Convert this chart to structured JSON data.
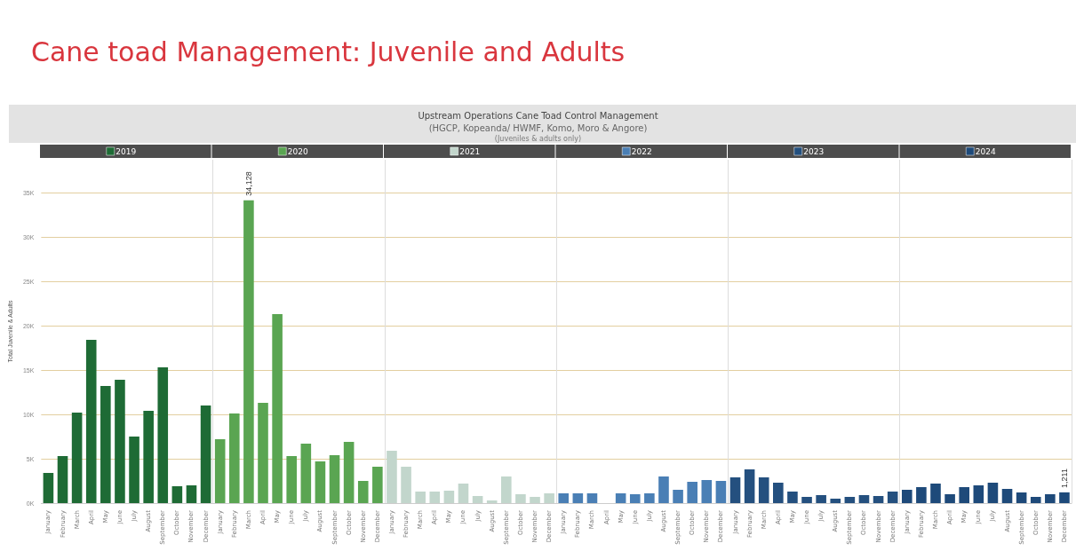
{
  "chart_data": {
    "type": "bar",
    "title": "Cane toad Management: Juvenile and Adults",
    "subtitle": "Upstream Operations Cane Toad Control Management",
    "annotations": [
      "(HGCP, Kopeanda/ HWMF, Komo, Moro & Angore)",
      "(Juveniles & adults only)"
    ],
    "ylabel": "Total Juvenile & Adults",
    "categories": [
      "January",
      "February",
      "March",
      "April",
      "May",
      "June",
      "July",
      "August",
      "September",
      "October",
      "November",
      "December",
      "January",
      "February",
      "March",
      "April",
      "May",
      "June",
      "July",
      "August",
      "September",
      "October",
      "November",
      "December",
      "January",
      "February",
      "March",
      "April",
      "May",
      "June",
      "July",
      "August",
      "September",
      "October",
      "November",
      "December",
      "January",
      "February",
      "March",
      "April",
      "May",
      "June",
      "July",
      "August",
      "September",
      "October",
      "November",
      "December",
      "January",
      "February",
      "March",
      "April",
      "May",
      "June",
      "July",
      "August",
      "September",
      "October",
      "November",
      "December",
      "January",
      "February",
      "March",
      "April",
      "May",
      "June",
      "July",
      "August",
      "September",
      "October",
      "November",
      "December"
    ],
    "series": [
      {
        "name": "2019",
        "color": "#1e6b35",
        "values": [
          3400,
          5300,
          10200,
          18400,
          13200,
          13900,
          7500,
          10400,
          15300,
          1900,
          2000,
          11000,
          null,
          null,
          null,
          null,
          null,
          null,
          null,
          null,
          null,
          null,
          null,
          null,
          null,
          null,
          null,
          null,
          null,
          null,
          null,
          null,
          null,
          null,
          null,
          null,
          null,
          null,
          null,
          null,
          null,
          null,
          null,
          null,
          null,
          null,
          null,
          null,
          null,
          null,
          null,
          null,
          null,
          null,
          null,
          null,
          null,
          null,
          null,
          null,
          null,
          null,
          null,
          null,
          null,
          null,
          null,
          null,
          null,
          null,
          null,
          null
        ]
      },
      {
        "name": "2020",
        "color": "#5aa552",
        "values": [
          null,
          null,
          null,
          null,
          null,
          null,
          null,
          null,
          null,
          null,
          null,
          null,
          7200,
          10100,
          34128,
          11300,
          21300,
          5300,
          6700,
          4700,
          5400,
          6900,
          2500,
          4100,
          null,
          null,
          null,
          null,
          null,
          null,
          null,
          null,
          null,
          null,
          null,
          null,
          null,
          null,
          null,
          null,
          null,
          null,
          null,
          null,
          null,
          null,
          null,
          null,
          null,
          null,
          null,
          null,
          null,
          null,
          null,
          null,
          null,
          null,
          null,
          null,
          null,
          null,
          null,
          null,
          null,
          null,
          null,
          null,
          null,
          null,
          null,
          null
        ],
        "value_labels": [
          null,
          null,
          null,
          null,
          null,
          null,
          null,
          null,
          null,
          null,
          null,
          null,
          null,
          null,
          "34,128",
          null,
          null,
          null,
          null,
          null,
          null,
          null,
          null,
          null,
          null,
          null,
          null,
          null,
          null,
          null,
          null,
          null,
          null,
          null,
          null,
          null,
          null,
          null,
          null,
          null,
          null,
          null,
          null,
          null,
          null,
          null,
          null,
          null,
          null,
          null,
          null,
          null,
          null,
          null,
          null,
          null,
          null,
          null,
          null,
          null,
          null,
          null,
          null,
          null,
          null,
          null,
          null,
          null,
          null,
          null,
          null,
          null
        ]
      },
      {
        "name": "2021",
        "color": "#c2d6cc",
        "values": [
          null,
          null,
          null,
          null,
          null,
          null,
          null,
          null,
          null,
          null,
          null,
          null,
          null,
          null,
          null,
          null,
          null,
          null,
          null,
          null,
          null,
          null,
          null,
          null,
          5900,
          4100,
          1300,
          1300,
          1400,
          2200,
          800,
          300,
          3000,
          1000,
          700,
          1100,
          null,
          null,
          null,
          null,
          null,
          null,
          null,
          null,
          null,
          null,
          null,
          null,
          null,
          null,
          null,
          null,
          null,
          null,
          null,
          null,
          null,
          null,
          null,
          null,
          null,
          null,
          null,
          null,
          null,
          null,
          null,
          null,
          null,
          null,
          null,
          null
        ]
      },
      {
        "name": "2022",
        "color": "#4a7fb5",
        "values": [
          null,
          null,
          null,
          null,
          null,
          null,
          null,
          null,
          null,
          null,
          null,
          null,
          null,
          null,
          null,
          null,
          null,
          null,
          null,
          null,
          null,
          null,
          null,
          null,
          null,
          null,
          null,
          null,
          null,
          null,
          null,
          null,
          null,
          null,
          null,
          null,
          1100,
          1100,
          1100,
          0,
          1100,
          1000,
          1100,
          3000,
          1500,
          2400,
          2600,
          2500,
          null,
          null,
          null,
          null,
          null,
          null,
          null,
          null,
          null,
          null,
          null,
          null,
          null,
          null,
          null,
          null,
          null,
          null,
          null,
          null,
          null,
          null,
          null,
          null
        ]
      },
      {
        "name": "2023",
        "color": "#24507f",
        "values": [
          null,
          null,
          null,
          null,
          null,
          null,
          null,
          null,
          null,
          null,
          null,
          null,
          null,
          null,
          null,
          null,
          null,
          null,
          null,
          null,
          null,
          null,
          null,
          null,
          null,
          null,
          null,
          null,
          null,
          null,
          null,
          null,
          null,
          null,
          null,
          null,
          null,
          null,
          null,
          null,
          null,
          null,
          null,
          null,
          null,
          null,
          null,
          null,
          2900,
          3800,
          2900,
          2300,
          1300,
          700,
          900,
          500,
          700,
          900,
          800,
          1300,
          null,
          null,
          null,
          null,
          null,
          null,
          null,
          null,
          null,
          null,
          null,
          null
        ]
      },
      {
        "name": "2024",
        "color": "#1e4a7a",
        "values": [
          null,
          null,
          null,
          null,
          null,
          null,
          null,
          null,
          null,
          null,
          null,
          null,
          null,
          null,
          null,
          null,
          null,
          null,
          null,
          null,
          null,
          null,
          null,
          null,
          null,
          null,
          null,
          null,
          null,
          null,
          null,
          null,
          null,
          null,
          null,
          null,
          null,
          null,
          null,
          null,
          null,
          null,
          null,
          null,
          null,
          null,
          null,
          null,
          null,
          null,
          null,
          null,
          null,
          null,
          null,
          null,
          null,
          null,
          null,
          null,
          1500,
          1800,
          2200,
          1000,
          1800,
          2000,
          2300,
          1600,
          1200,
          700,
          1000,
          1211
        ],
        "value_labels": [
          null,
          null,
          null,
          null,
          null,
          null,
          null,
          null,
          null,
          null,
          null,
          null,
          null,
          null,
          null,
          null,
          null,
          null,
          null,
          null,
          null,
          null,
          null,
          null,
          null,
          null,
          null,
          null,
          null,
          null,
          null,
          null,
          null,
          null,
          null,
          null,
          null,
          null,
          null,
          null,
          null,
          null,
          null,
          null,
          null,
          null,
          null,
          null,
          null,
          null,
          null,
          null,
          null,
          null,
          null,
          null,
          null,
          null,
          null,
          null,
          null,
          null,
          null,
          null,
          null,
          null,
          null,
          null,
          null,
          null,
          null,
          "1,211"
        ]
      }
    ],
    "ylim": [
      0,
      38700
    ],
    "yticks": [
      {
        "value": 0,
        "label": "0K"
      },
      {
        "value": 5000,
        "label": "5K"
      },
      {
        "value": 10000,
        "label": "10K"
      },
      {
        "value": 15000,
        "label": "15K"
      },
      {
        "value": 20000,
        "label": "20K"
      },
      {
        "value": 25000,
        "label": "25K"
      },
      {
        "value": 30000,
        "label": "30K"
      },
      {
        "value": 35000,
        "label": "35K"
      }
    ],
    "grid": "y",
    "legend": "top"
  }
}
